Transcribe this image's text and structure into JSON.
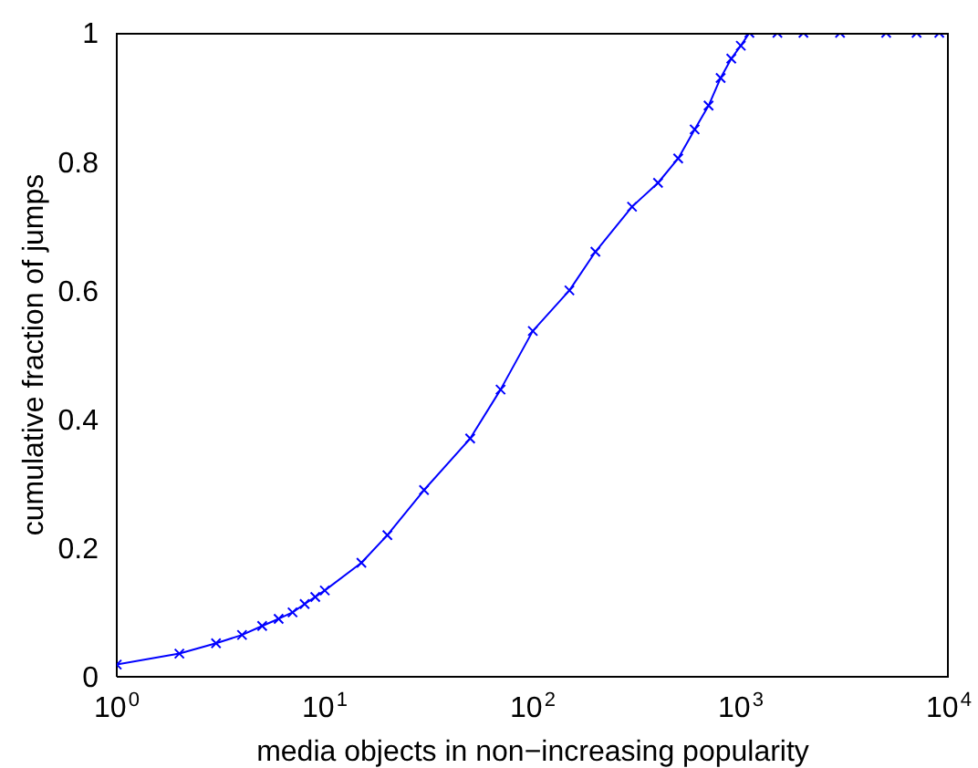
{
  "chart_data": {
    "type": "line",
    "xlabel": "media objects in non−increasing popularity",
    "ylabel": "cumulative fraction of jumps",
    "log": "x",
    "marker": "cross",
    "line_style": "solid",
    "xlim": [
      1,
      10000
    ],
    "xticks": [
      {
        "value": 1,
        "label": "10$^{0}$"
      },
      {
        "value": 10,
        "label": "10$^{1}$"
      },
      {
        "value": 100,
        "label": "10$^{2}$"
      },
      {
        "value": 1000,
        "label": "10$^{3}$"
      },
      {
        "value": 10000,
        "label": "10$^{4}$"
      }
    ],
    "ylim": [
      0,
      1
    ],
    "yticks": [
      0,
      0.2,
      0.4,
      0.6,
      0.8,
      1
    ],
    "series": [
      {
        "color": "#0000ff",
        "x": [
          1,
          2,
          3,
          4,
          5,
          6,
          7,
          8,
          9,
          10,
          15,
          20,
          30,
          50,
          70,
          100,
          150,
          200,
          300,
          400,
          500,
          600,
          700,
          800,
          900,
          1000,
          1100,
          1500,
          2000,
          3000,
          5000,
          7000,
          9000
        ],
        "values": [
          0.019,
          0.036,
          0.052,
          0.065,
          0.079,
          0.09,
          0.1,
          0.113,
          0.124,
          0.134,
          0.177,
          0.22,
          0.29,
          0.37,
          0.446,
          0.537,
          0.6,
          0.66,
          0.73,
          0.767,
          0.805,
          0.85,
          0.887,
          0.93,
          0.96,
          0.98,
          1,
          1,
          1,
          1,
          1,
          1,
          1
        ]
      }
    ]
  }
}
